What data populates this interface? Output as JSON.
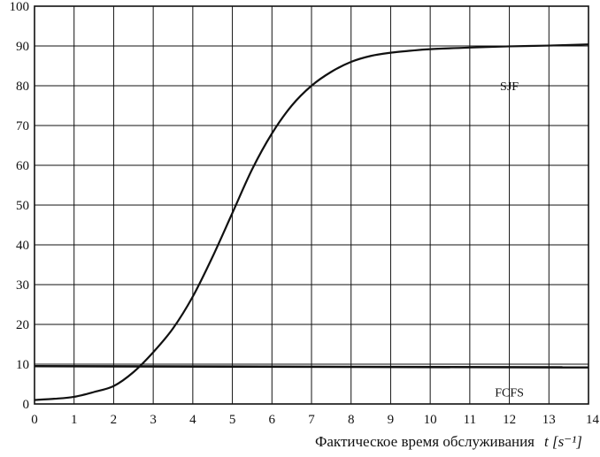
{
  "chart_data": {
    "type": "line",
    "title": "",
    "xlabel": "Фактическое время обслуживания",
    "xlabel_unit": "t [s⁻¹]",
    "ylabel": "",
    "xlim": [
      0,
      14
    ],
    "ylim": [
      0,
      100
    ],
    "x_ticks": [
      0,
      1,
      2,
      3,
      4,
      5,
      6,
      7,
      8,
      9,
      10,
      11,
      12,
      13,
      14
    ],
    "x_tick_labels": [
      "0",
      "1",
      "2",
      "3",
      "4",
      "5",
      "6",
      "7",
      "8",
      "9",
      "10",
      "11",
      "12",
      "13",
      "14"
    ],
    "y_ticks": [
      0,
      10,
      20,
      30,
      40,
      50,
      60,
      70,
      80,
      90,
      100
    ],
    "y_tick_labels": [
      "0",
      "10",
      "20",
      "30",
      "40",
      "50",
      "60",
      "70",
      "80",
      "90",
      "100"
    ],
    "grid": true,
    "legend": "none",
    "colors": {
      "line": "#111111",
      "grid": "#111111"
    },
    "series": [
      {
        "name": "SJF",
        "x": [
          0,
          0.5,
          1,
          1.5,
          2,
          2.5,
          3,
          3.5,
          4,
          4.5,
          5,
          5.5,
          6,
          6.5,
          7,
          7.5,
          8,
          8.5,
          9,
          9.5,
          10,
          11,
          12,
          13,
          14
        ],
        "y": [
          1,
          1.3,
          1.8,
          3,
          4.5,
          8,
          13,
          19,
          27,
          37,
          48,
          59,
          68,
          75,
          80,
          83.5,
          86,
          87.5,
          88.3,
          88.8,
          89.2,
          89.6,
          89.9,
          90.1,
          90.4
        ],
        "label_at": [
          12,
          80
        ]
      },
      {
        "name": "FCFS",
        "x": [
          0,
          14
        ],
        "y": [
          9.5,
          9.2
        ],
        "label_at": [
          12,
          3
        ]
      }
    ]
  }
}
